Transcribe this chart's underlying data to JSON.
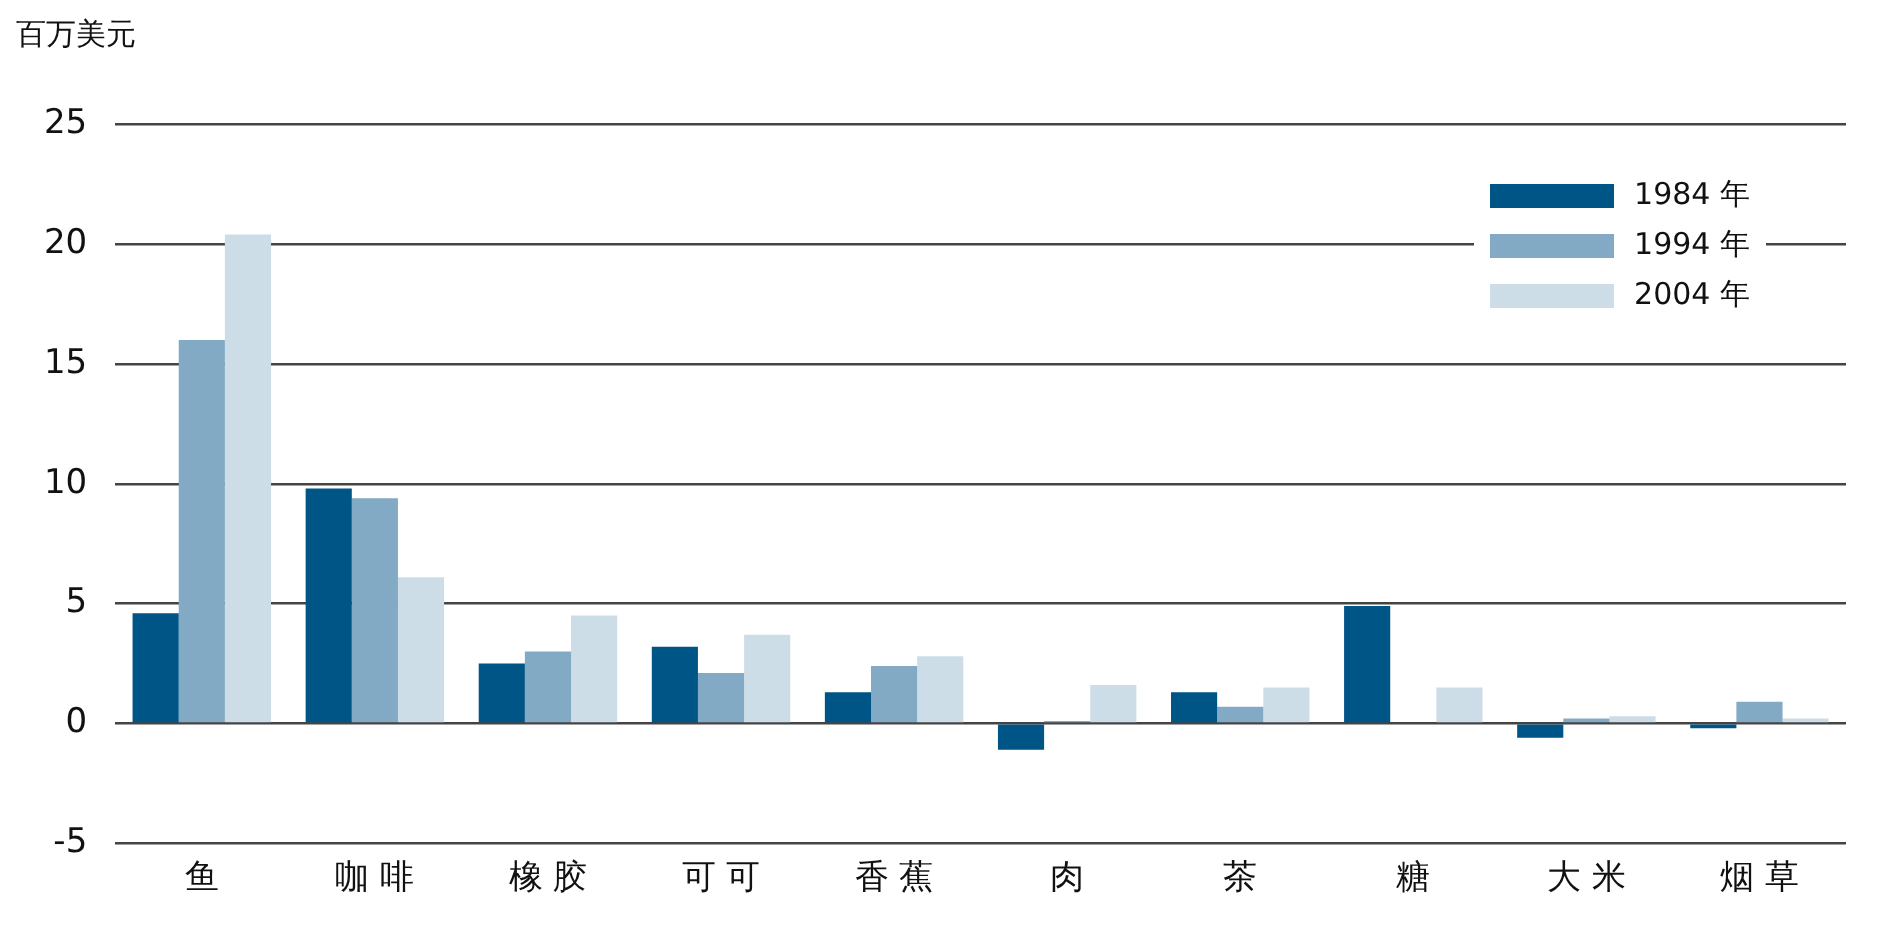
{
  "chart_data": {
    "type": "bar",
    "ylabel": "百万美元",
    "categories": [
      "鱼",
      "咖 啡",
      "橡 胶",
      "可 可",
      "香 蕉",
      "肉",
      "茶",
      "糖",
      "大 米",
      "烟 草"
    ],
    "series": [
      {
        "name": "1984 年",
        "color": "#005587",
        "values": [
          4.6,
          9.8,
          2.5,
          3.2,
          1.3,
          -1.1,
          1.3,
          4.9,
          -0.6,
          -0.2
        ]
      },
      {
        "name": "1994 年",
        "color": "#82aac4",
        "values": [
          16.0,
          9.4,
          3.0,
          2.1,
          2.4,
          0.1,
          0.7,
          0,
          0.2,
          0.9
        ]
      },
      {
        "name": "2004 年",
        "color": "#cddde7",
        "values": [
          20.4,
          6.1,
          4.5,
          3.7,
          2.8,
          1.6,
          1.5,
          1.5,
          0.3,
          0.2
        ]
      }
    ],
    "ylim": [
      -5,
      25
    ],
    "yticks": [
      -5,
      0,
      5,
      10,
      15,
      20,
      25
    ],
    "grid": "y",
    "legend": "top right"
  }
}
